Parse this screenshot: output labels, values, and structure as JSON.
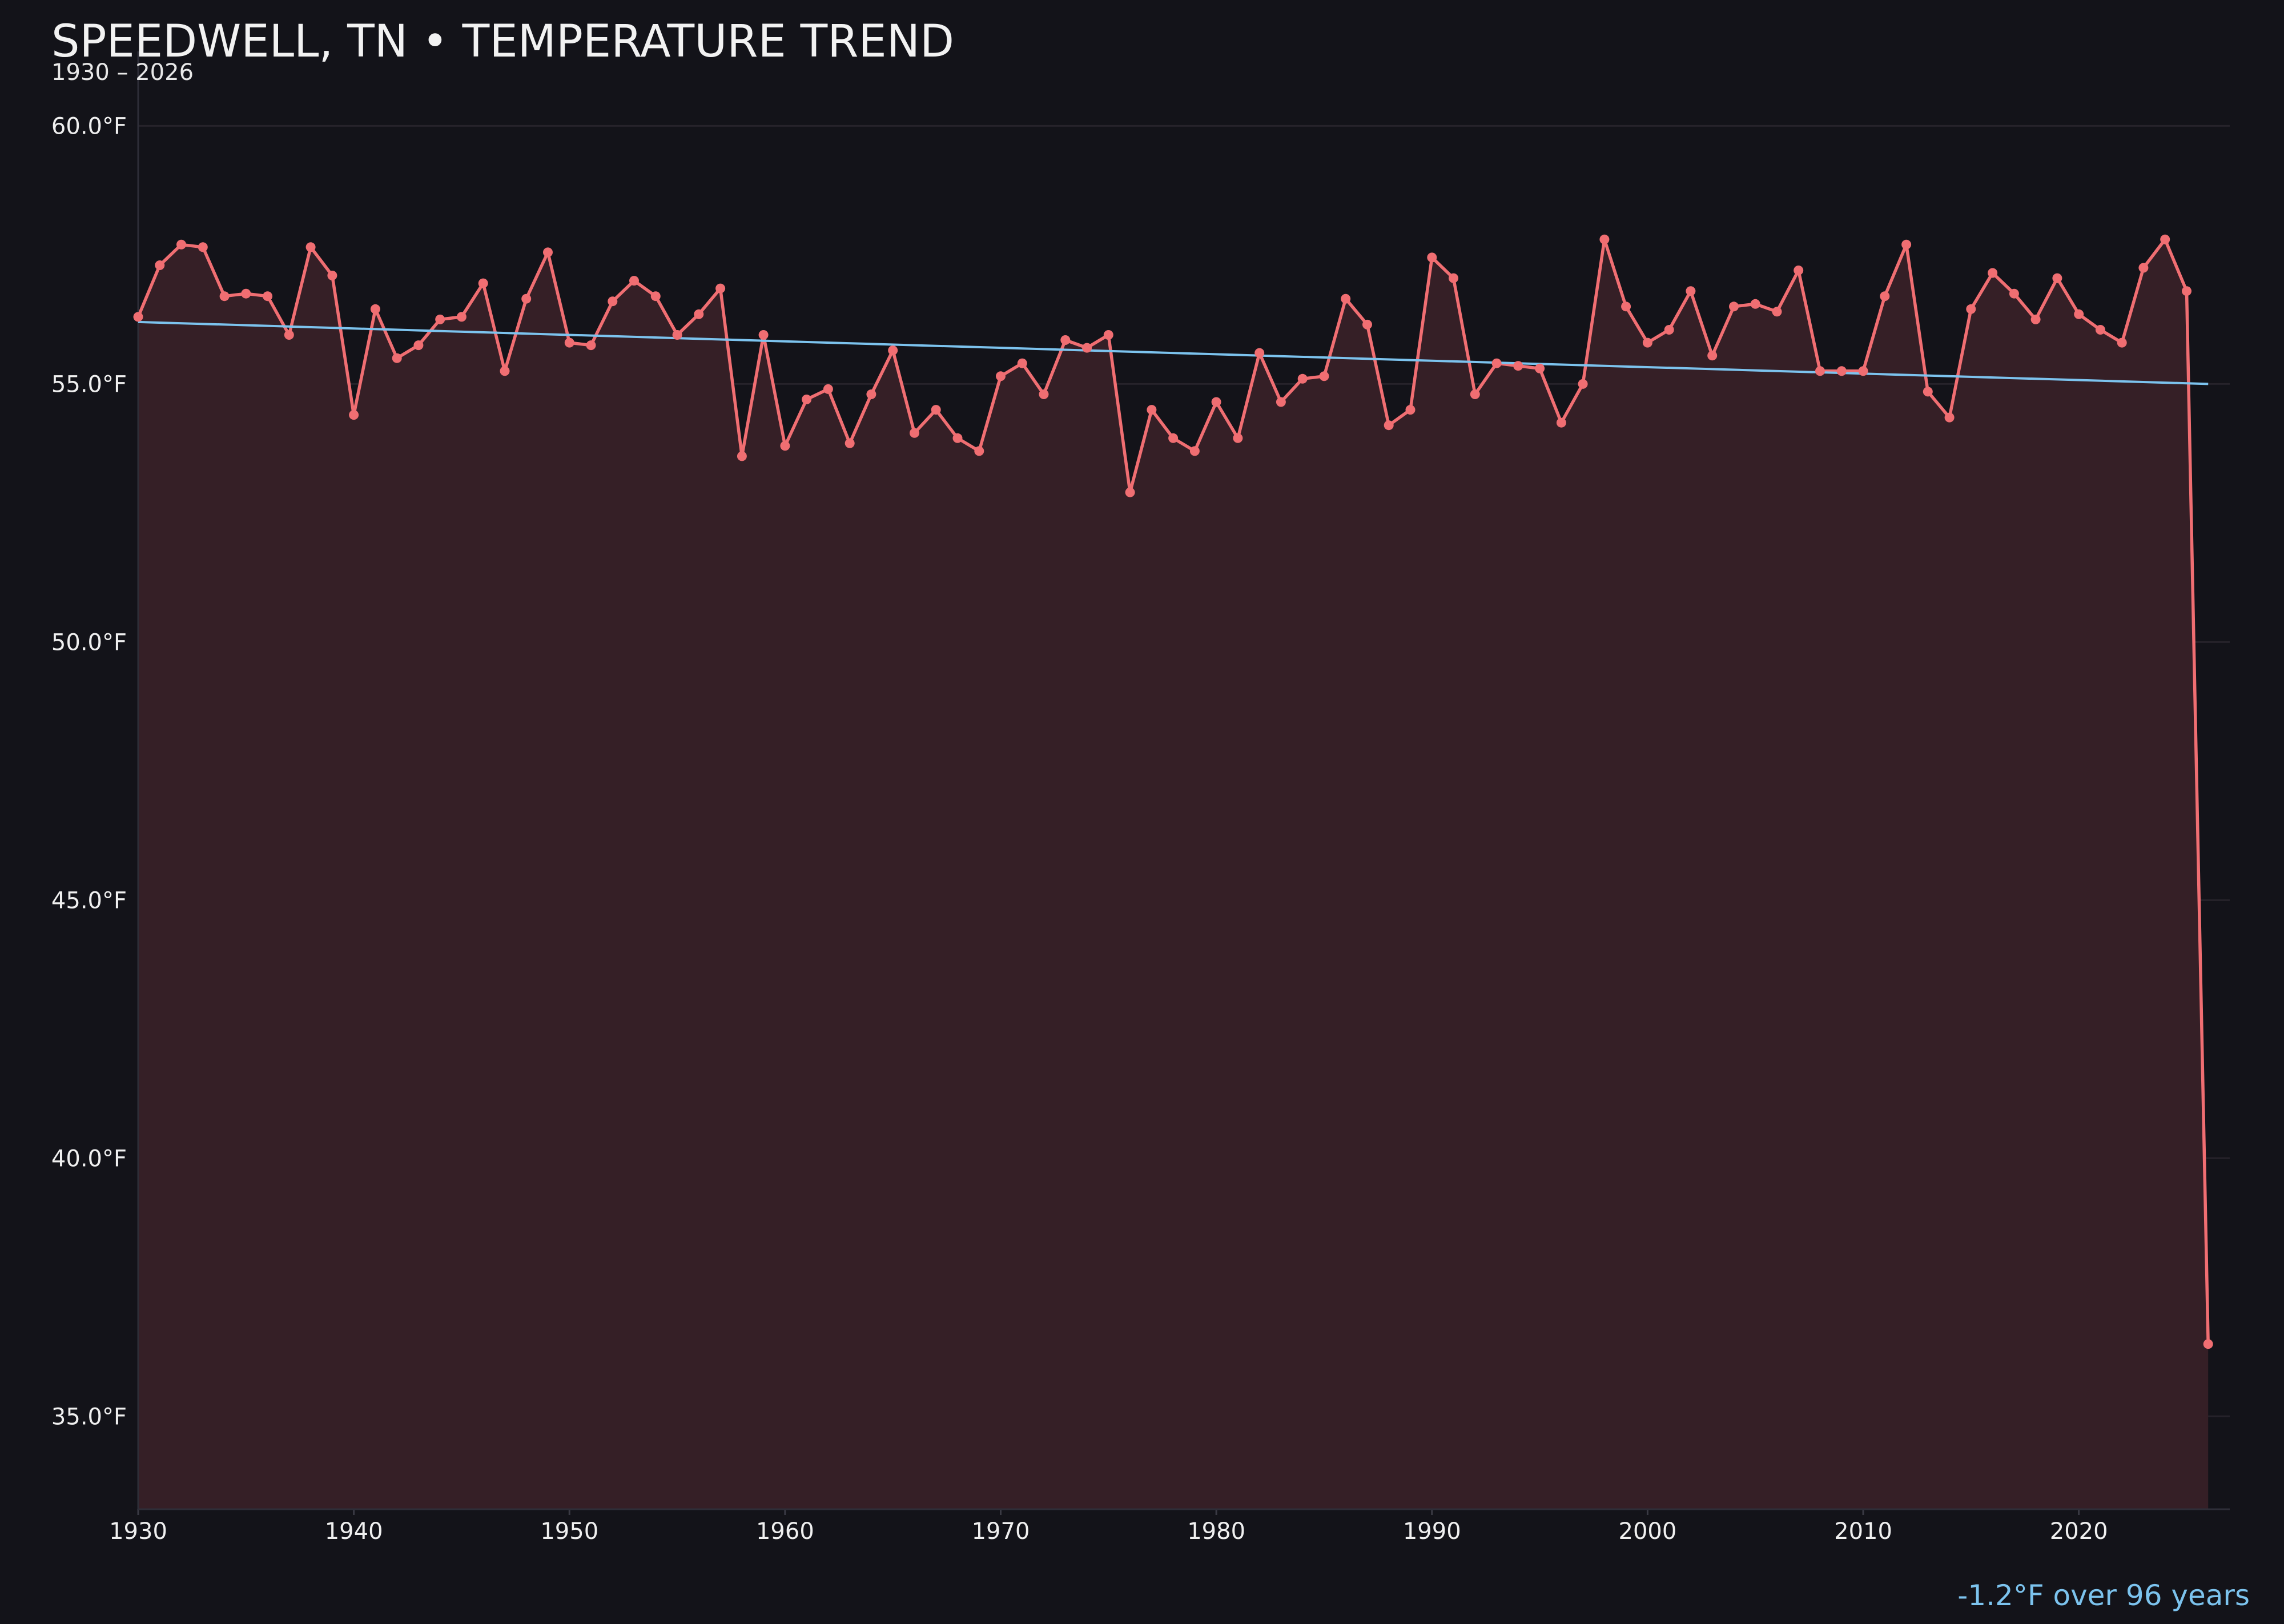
{
  "header": {
    "title": "SPEEDWELL, TN • TEMPERATURE TREND",
    "subtitle": "1930 – 2026"
  },
  "annotation": "-1.2°F over 96 years",
  "colors": {
    "background": "#131319",
    "series_line": "#f06e72",
    "area_fill": "#351f26",
    "trend_line": "#7cc3ee",
    "grid": "#26232a",
    "tick_text": "#f0f0f0"
  },
  "chart_data": {
    "type": "line",
    "title": "SPEEDWELL, TN • TEMPERATURE TREND",
    "subtitle": "1930 – 2026",
    "xlabel": "",
    "ylabel": "",
    "x_ticks": [
      1930,
      1940,
      1950,
      1960,
      1970,
      1980,
      1990,
      2000,
      2010,
      2020
    ],
    "y_ticks": [
      35,
      40,
      45,
      50,
      55,
      60
    ],
    "y_tick_labels": [
      "35.0°F",
      "40.0°F",
      "45.0°F",
      "50.0°F",
      "55.0°F",
      "60.0°F"
    ],
    "xlim": [
      1930,
      2027
    ],
    "ylim": [
      33.2,
      61
    ],
    "grid": true,
    "x": [
      1930,
      1931,
      1932,
      1933,
      1934,
      1935,
      1936,
      1937,
      1938,
      1939,
      1940,
      1941,
      1942,
      1943,
      1944,
      1945,
      1946,
      1947,
      1948,
      1949,
      1950,
      1951,
      1952,
      1953,
      1954,
      1955,
      1956,
      1957,
      1958,
      1959,
      1960,
      1961,
      1962,
      1963,
      1964,
      1965,
      1966,
      1967,
      1968,
      1969,
      1970,
      1971,
      1972,
      1973,
      1974,
      1975,
      1976,
      1977,
      1978,
      1979,
      1980,
      1981,
      1982,
      1983,
      1984,
      1985,
      1986,
      1987,
      1988,
      1989,
      1990,
      1991,
      1992,
      1993,
      1994,
      1995,
      1996,
      1997,
      1998,
      1999,
      2000,
      2001,
      2002,
      2003,
      2004,
      2005,
      2006,
      2007,
      2008,
      2009,
      2010,
      2011,
      2012,
      2013,
      2014,
      2015,
      2016,
      2017,
      2018,
      2019,
      2020,
      2021,
      2022,
      2023,
      2024,
      2025,
      2026
    ],
    "series": [
      {
        "name": "",
        "values": [
          56.3,
          57.3,
          57.7,
          57.65,
          56.7,
          56.75,
          56.7,
          55.95,
          57.65,
          57.1,
          54.4,
          56.45,
          55.5,
          55.75,
          56.25,
          56.3,
          56.95,
          55.25,
          56.65,
          57.55,
          55.8,
          55.75,
          56.6,
          57.0,
          56.7,
          55.95,
          56.35,
          56.85,
          53.6,
          55.95,
          53.8,
          54.7,
          54.9,
          53.85,
          54.8,
          55.65,
          54.05,
          54.5,
          53.95,
          53.7,
          55.15,
          55.4,
          54.8,
          55.85,
          55.7,
          55.95,
          52.9,
          54.5,
          53.95,
          53.7,
          54.65,
          53.95,
          55.6,
          54.65,
          55.1,
          55.15,
          56.65,
          56.15,
          54.2,
          54.5,
          57.45,
          57.05,
          54.8,
          55.4,
          55.35,
          55.3,
          54.25,
          55.0,
          57.8,
          56.5,
          55.8,
          56.05,
          56.8,
          55.55,
          56.5,
          56.55,
          56.4,
          57.2,
          55.25,
          55.25,
          55.25,
          56.7,
          57.7,
          54.85,
          54.35,
          56.45,
          57.15,
          56.75,
          56.25,
          57.05,
          56.35,
          56.05,
          55.8,
          57.25,
          57.8,
          56.8,
          36.4
        ]
      }
    ],
    "trend": {
      "name": "",
      "x": [
        1930,
        2026
      ],
      "y": [
        56.2,
        55.0
      ]
    }
  }
}
